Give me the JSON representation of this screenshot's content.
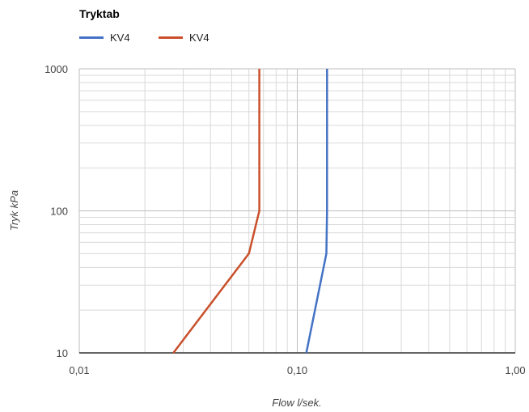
{
  "chart_data": {
    "type": "line",
    "title": "Tryktab",
    "xlabel": "Flow l/sek.",
    "ylabel": "Tryk kPa",
    "x_scale": "log",
    "y_scale": "log",
    "xlim": [
      0.01,
      1.0
    ],
    "ylim": [
      10,
      1000
    ],
    "x_ticks": [
      {
        "value": 0.01,
        "label": "0,01"
      },
      {
        "value": 0.1,
        "label": "0,10"
      },
      {
        "value": 1.0,
        "label": "1,00"
      }
    ],
    "y_ticks": [
      {
        "value": 10,
        "label": "10"
      },
      {
        "value": 100,
        "label": "100"
      },
      {
        "value": 1000,
        "label": "1000"
      }
    ],
    "grid": true,
    "legend_position": "top-left",
    "series": [
      {
        "name": "KV4",
        "color": "#4472C4",
        "points": [
          {
            "x": 0.11,
            "y": 10
          },
          {
            "x": 0.136,
            "y": 50
          },
          {
            "x": 0.137,
            "y": 100
          },
          {
            "x": 0.137,
            "y": 1000
          }
        ]
      },
      {
        "name": "KV4",
        "color": "#C9502B",
        "points": [
          {
            "x": 0.027,
            "y": 10
          },
          {
            "x": 0.06,
            "y": 50
          },
          {
            "x": 0.067,
            "y": 100
          },
          {
            "x": 0.067,
            "y": 1000
          }
        ]
      }
    ]
  }
}
